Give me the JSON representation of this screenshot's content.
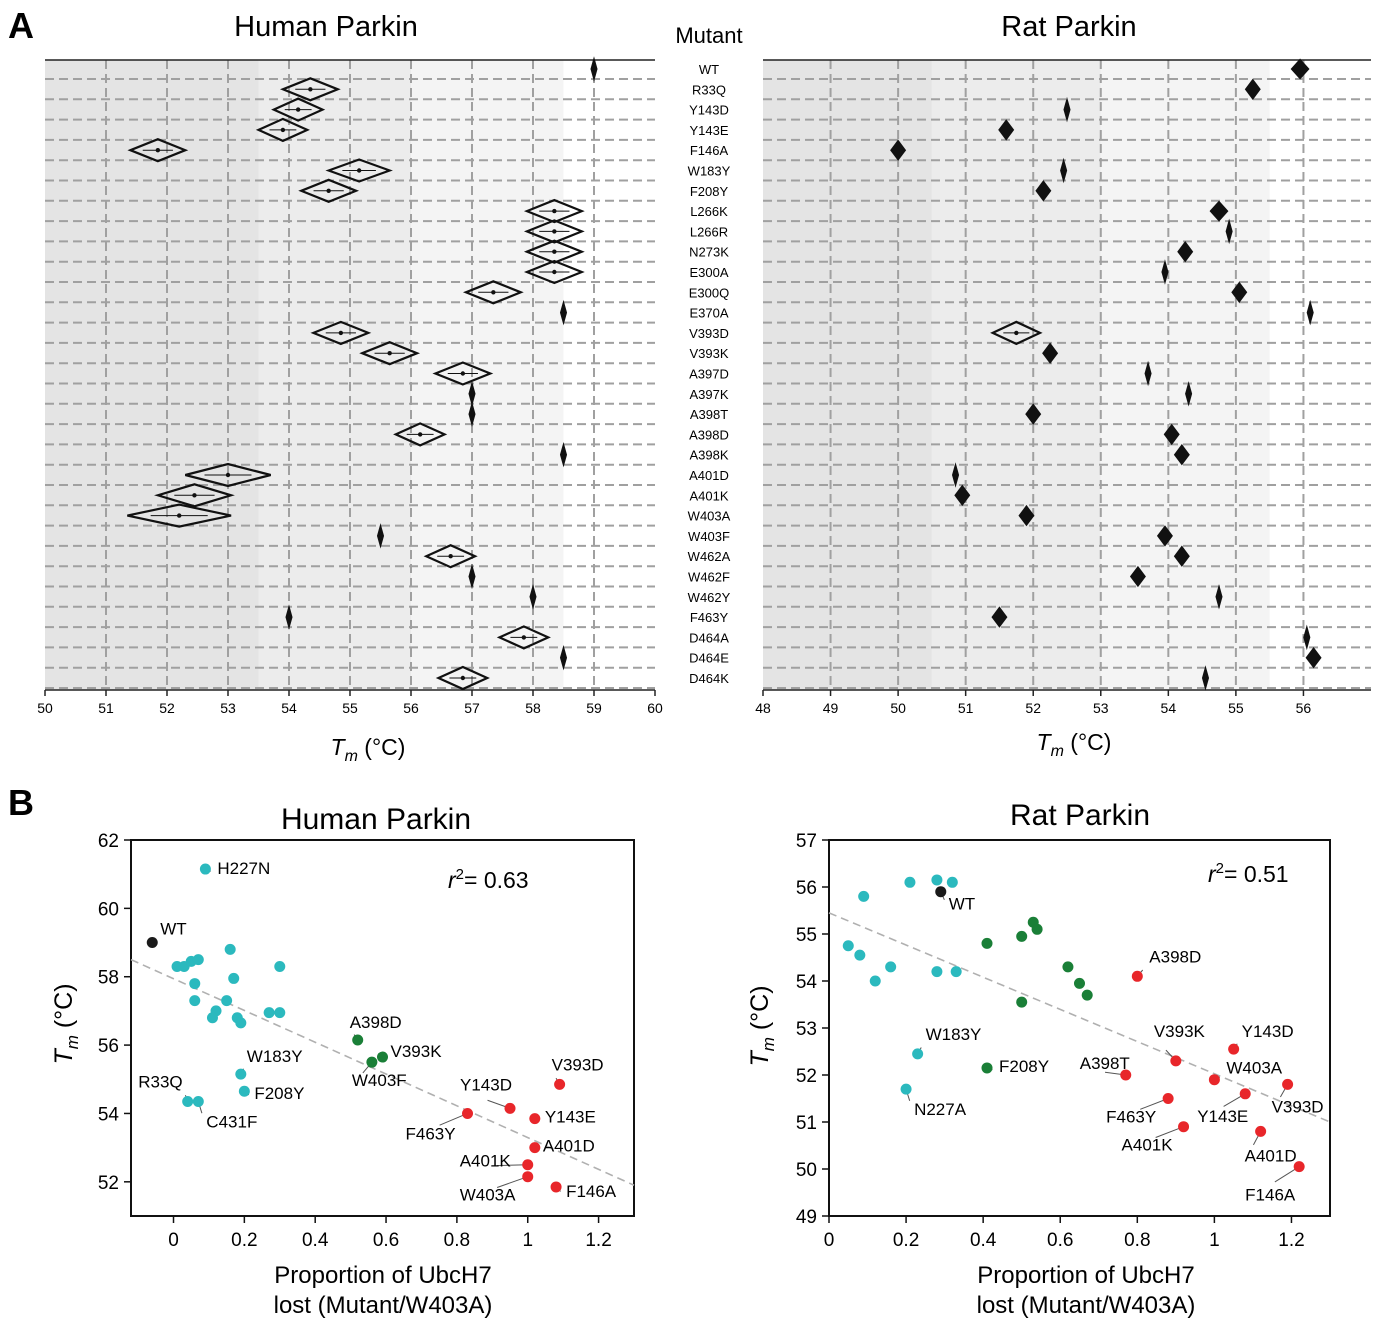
{
  "panel_labels": {
    "a": "A",
    "b": "B"
  },
  "panel_a": {
    "human_title": "Human Parkin",
    "rat_title": "Rat Parkin",
    "mutant_header": "Mutant",
    "xlabel_sym": "T",
    "xlabel_sub": "m",
    "xlabel_unit": " (°C)",
    "mutants": [
      "WT",
      "R33Q",
      "Y143D",
      "Y143E",
      "F146A",
      "W183Y",
      "F208Y",
      "L266K",
      "L266R",
      "N273K",
      "E300A",
      "E300Q",
      "E370A",
      "V393D",
      "V393K",
      "A397D",
      "A397K",
      "A398T",
      "A398D",
      "A398K",
      "A401D",
      "A401K",
      "W403A",
      "W403F",
      "W462A",
      "W462F",
      "W462Y",
      "F463Y",
      "D464A",
      "D464E",
      "D464K"
    ]
  },
  "panel_b": {
    "human_title": "Human Parkin",
    "rat_title": "Rat Parkin",
    "ylabel_sym": "T",
    "ylabel_sub": "m",
    "ylabel_unit": " (°C)",
    "xlabel_line1": "Proportion of UbcH7",
    "xlabel_line2": "lost (Mutant/W403A)",
    "human_r2": "= 0.63",
    "rat_r2": "= 0.51",
    "r2_sym": "r",
    "r2_sup": "2"
  },
  "colors": {
    "cyan": "#2bb9be",
    "green": "#1a7f37",
    "red": "#e8262a",
    "black": "#1a1a1a",
    "shade1": "#e4e4e4",
    "shade2": "#ececec",
    "shade3": "#f4f4f4",
    "grid": "#a0a0a0",
    "fit": "#b0b0b0"
  },
  "chart_data": [
    {
      "type": "scatter",
      "title": "Human Parkin",
      "xlabel": "Tm (°C)",
      "xlim": [
        50,
        60
      ],
      "xticks": [
        50,
        51,
        52,
        53,
        54,
        55,
        56,
        57,
        58,
        59,
        60
      ],
      "grid": true,
      "categories": [
        "WT",
        "R33Q",
        "Y143D",
        "Y143E",
        "F146A",
        "W183Y",
        "F208Y",
        "L266K",
        "L266R",
        "N273K",
        "E300A",
        "E300Q",
        "E370A",
        "V393D",
        "V393K",
        "A397D",
        "A397K",
        "A398T",
        "A398D",
        "A398K",
        "A401D",
        "A401K",
        "W403A",
        "W403F",
        "W462A",
        "W462F",
        "W462Y",
        "F463Y",
        "D464A",
        "D464E",
        "D464K"
      ],
      "values": [
        59.0,
        54.35,
        54.15,
        53.9,
        51.85,
        55.15,
        54.65,
        58.35,
        58.35,
        58.35,
        58.35,
        57.35,
        58.5,
        54.85,
        55.65,
        56.85,
        57.0,
        57.0,
        56.15,
        58.5,
        53.0,
        52.45,
        52.2,
        55.5,
        56.65,
        57.0,
        58.0,
        54.0,
        57.85,
        58.5,
        56.85
      ],
      "half_width": [
        0.03,
        0.45,
        0.4,
        0.4,
        0.45,
        0.5,
        0.45,
        0.45,
        0.45,
        0.45,
        0.45,
        0.45,
        0.03,
        0.45,
        0.45,
        0.45,
        0.03,
        0.03,
        0.4,
        0.03,
        0.7,
        0.6,
        0.85,
        0.03,
        0.4,
        0.03,
        0.03,
        0.03,
        0.4,
        0.03,
        0.4
      ]
    },
    {
      "type": "scatter",
      "title": "Rat Parkin",
      "xlabel": "Tm (°C)",
      "xlim": [
        48,
        57
      ],
      "xticks": [
        48,
        49,
        50,
        51,
        52,
        53,
        54,
        55,
        56
      ],
      "grid": true,
      "categories": [
        "WT",
        "R33Q",
        "Y143D",
        "Y143E",
        "F146A",
        "W183Y",
        "F208Y",
        "L266K",
        "L266R",
        "N273K",
        "E300A",
        "E300Q",
        "E370A",
        "V393D",
        "V393K",
        "A397D",
        "A397K",
        "A398T",
        "A398D",
        "A398K",
        "A401D",
        "A401K",
        "W403A",
        "W403F",
        "W462A",
        "W462F",
        "W462Y",
        "F463Y",
        "D464A",
        "D464E",
        "D464K"
      ],
      "values": [
        55.95,
        55.25,
        52.5,
        51.6,
        50.0,
        52.45,
        52.15,
        54.75,
        54.9,
        54.25,
        53.95,
        55.05,
        56.1,
        51.75,
        52.25,
        53.7,
        54.3,
        52.0,
        54.05,
        54.2,
        50.85,
        50.95,
        51.9,
        53.95,
        54.2,
        53.55,
        54.75,
        51.5,
        56.05,
        56.15,
        54.55
      ],
      "half_width": [
        0.12,
        0.1,
        0.03,
        0.1,
        0.1,
        0.03,
        0.1,
        0.12,
        0.03,
        0.1,
        0.03,
        0.1,
        0.03,
        0.35,
        0.1,
        0.03,
        0.03,
        0.1,
        0.1,
        0.1,
        0.03,
        0.1,
        0.1,
        0.1,
        0.1,
        0.1,
        0.03,
        0.1,
        0.03,
        0.1,
        0.03
      ]
    },
    {
      "type": "scatter",
      "title": "Human Parkin",
      "xlabel": "Proportion of UbcH7 lost (Mutant/W403A)",
      "ylabel": "Tm (°C)",
      "xlim": [
        -0.12,
        1.3
      ],
      "ylim": [
        51,
        62
      ],
      "xticks": [
        0.0,
        0.2,
        0.4,
        0.6,
        0.8,
        1.0,
        1.2
      ],
      "yticks": [
        52,
        54,
        56,
        58,
        60,
        62
      ],
      "annotation": "r2 = 0.63",
      "fit_line": [
        [
          -0.12,
          58.5
        ],
        [
          1.3,
          51.9
        ]
      ],
      "points": [
        {
          "x": -0.06,
          "y": 59.0,
          "group": "black",
          "label": "WT"
        },
        {
          "x": 0.09,
          "y": 61.15,
          "group": "cyan",
          "label": "H227N"
        },
        {
          "x": 0.01,
          "y": 58.3,
          "group": "cyan"
        },
        {
          "x": 0.03,
          "y": 58.3,
          "group": "cyan"
        },
        {
          "x": 0.05,
          "y": 58.45,
          "group": "cyan"
        },
        {
          "x": 0.07,
          "y": 58.5,
          "group": "cyan"
        },
        {
          "x": 0.06,
          "y": 57.8,
          "group": "cyan"
        },
        {
          "x": 0.06,
          "y": 57.3,
          "group": "cyan"
        },
        {
          "x": 0.16,
          "y": 58.8,
          "group": "cyan"
        },
        {
          "x": 0.17,
          "y": 57.95,
          "group": "cyan"
        },
        {
          "x": 0.15,
          "y": 57.3,
          "group": "cyan"
        },
        {
          "x": 0.12,
          "y": 57.0,
          "group": "cyan"
        },
        {
          "x": 0.11,
          "y": 56.8,
          "group": "cyan"
        },
        {
          "x": 0.18,
          "y": 56.8,
          "group": "cyan"
        },
        {
          "x": 0.19,
          "y": 56.65,
          "group": "cyan"
        },
        {
          "x": 0.27,
          "y": 56.95,
          "group": "cyan"
        },
        {
          "x": 0.3,
          "y": 56.95,
          "group": "cyan"
        },
        {
          "x": 0.3,
          "y": 58.3,
          "group": "cyan"
        },
        {
          "x": 0.19,
          "y": 55.15,
          "group": "cyan",
          "label": "W183Y"
        },
        {
          "x": 0.2,
          "y": 54.65,
          "group": "cyan",
          "label": "F208Y"
        },
        {
          "x": 0.04,
          "y": 54.35,
          "group": "cyan",
          "label": "R33Q"
        },
        {
          "x": 0.07,
          "y": 54.35,
          "group": "cyan",
          "label": "C431F"
        },
        {
          "x": 0.52,
          "y": 56.15,
          "group": "green",
          "label": "A398D"
        },
        {
          "x": 0.59,
          "y": 55.65,
          "group": "green",
          "label": "V393K"
        },
        {
          "x": 0.56,
          "y": 55.5,
          "group": "green",
          "label": "W403F"
        },
        {
          "x": 1.09,
          "y": 54.85,
          "group": "red",
          "label": "V393D"
        },
        {
          "x": 0.95,
          "y": 54.15,
          "group": "red",
          "label": "Y143D"
        },
        {
          "x": 1.02,
          "y": 53.85,
          "group": "red",
          "label": "Y143E"
        },
        {
          "x": 0.83,
          "y": 54.0,
          "group": "red",
          "label": "F463Y"
        },
        {
          "x": 1.02,
          "y": 53.0,
          "group": "red",
          "label": "A401D"
        },
        {
          "x": 1.0,
          "y": 52.5,
          "group": "red",
          "label": "A401K"
        },
        {
          "x": 1.0,
          "y": 52.15,
          "group": "red",
          "label": "W403A"
        },
        {
          "x": 1.08,
          "y": 51.85,
          "group": "red",
          "label": "F146A"
        }
      ]
    },
    {
      "type": "scatter",
      "title": "Rat Parkin",
      "xlabel": "Proportion of UbcH7 lost (Mutant/W403A)",
      "ylabel": "Tm (°C)",
      "xlim": [
        0.0,
        1.3
      ],
      "ylim": [
        49,
        57
      ],
      "xticks": [
        0.0,
        0.2,
        0.4,
        0.6,
        0.8,
        1.0,
        1.2
      ],
      "yticks": [
        49,
        50,
        51,
        52,
        53,
        54,
        55,
        56,
        57
      ],
      "annotation": "r2 = 0.51",
      "fit_line": [
        [
          0.0,
          55.45
        ],
        [
          1.3,
          51.0
        ]
      ],
      "points": [
        {
          "x": 0.29,
          "y": 55.9,
          "group": "black",
          "label": "WT"
        },
        {
          "x": 0.21,
          "y": 56.1,
          "group": "cyan"
        },
        {
          "x": 0.28,
          "y": 56.15,
          "group": "cyan"
        },
        {
          "x": 0.32,
          "y": 56.1,
          "group": "cyan"
        },
        {
          "x": 0.09,
          "y": 55.8,
          "group": "cyan"
        },
        {
          "x": 0.05,
          "y": 54.75,
          "group": "cyan"
        },
        {
          "x": 0.08,
          "y": 54.55,
          "group": "cyan"
        },
        {
          "x": 0.16,
          "y": 54.3,
          "group": "cyan"
        },
        {
          "x": 0.12,
          "y": 54.0,
          "group": "cyan"
        },
        {
          "x": 0.28,
          "y": 54.2,
          "group": "cyan"
        },
        {
          "x": 0.33,
          "y": 54.2,
          "group": "cyan"
        },
        {
          "x": 0.23,
          "y": 52.45,
          "group": "cyan",
          "label": "W183Y"
        },
        {
          "x": 0.2,
          "y": 51.7,
          "group": "cyan",
          "label": "N227A"
        },
        {
          "x": 0.41,
          "y": 52.15,
          "group": "green",
          "label": "F208Y"
        },
        {
          "x": 0.53,
          "y": 55.25,
          "group": "green"
        },
        {
          "x": 0.54,
          "y": 55.1,
          "group": "green"
        },
        {
          "x": 0.5,
          "y": 54.95,
          "group": "green"
        },
        {
          "x": 0.41,
          "y": 54.8,
          "group": "green"
        },
        {
          "x": 0.62,
          "y": 54.3,
          "group": "green"
        },
        {
          "x": 0.65,
          "y": 53.95,
          "group": "green"
        },
        {
          "x": 0.67,
          "y": 53.7,
          "group": "green"
        },
        {
          "x": 0.5,
          "y": 53.55,
          "group": "green"
        },
        {
          "x": 0.8,
          "y": 54.1,
          "group": "red",
          "label": "A398D"
        },
        {
          "x": 1.05,
          "y": 52.55,
          "group": "red",
          "label": "Y143D"
        },
        {
          "x": 0.9,
          "y": 52.3,
          "group": "red",
          "label": "V393K"
        },
        {
          "x": 0.77,
          "y": 52.0,
          "group": "red",
          "label": "A398T"
        },
        {
          "x": 1.0,
          "y": 51.9,
          "group": "red",
          "label": "W403A"
        },
        {
          "x": 1.19,
          "y": 51.8,
          "group": "red",
          "label": "V393D"
        },
        {
          "x": 1.08,
          "y": 51.6,
          "group": "red",
          "label": "Y143E"
        },
        {
          "x": 0.88,
          "y": 51.5,
          "group": "red",
          "label": "F463Y"
        },
        {
          "x": 0.92,
          "y": 50.9,
          "group": "red",
          "label": "A401K"
        },
        {
          "x": 1.12,
          "y": 50.8,
          "group": "red",
          "label": "A401D"
        },
        {
          "x": 1.22,
          "y": 50.05,
          "group": "red",
          "label": "F146A"
        }
      ]
    }
  ]
}
